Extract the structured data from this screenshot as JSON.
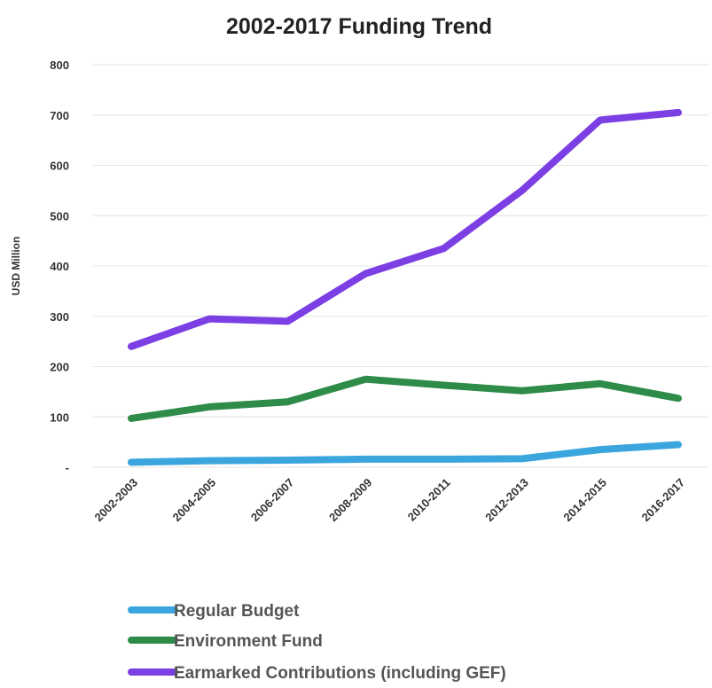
{
  "chart_data": {
    "type": "line",
    "title": "2002-2017 Funding Trend",
    "xlabel": "",
    "ylabel": "USD Million",
    "categories": [
      "2002-2003",
      "2004-2005",
      "2006-2007",
      "2008-2009",
      "2010-2011",
      "2012-2013",
      "2014-2015",
      "2016-2017"
    ],
    "ylim": [
      0,
      800
    ],
    "yticks": [
      0,
      100,
      200,
      300,
      400,
      500,
      600,
      700,
      800
    ],
    "ytick_labels": [
      "-",
      "100",
      "200",
      "300",
      "400",
      "500",
      "600",
      "700",
      "800"
    ],
    "grid": true,
    "legend_position": "bottom-left",
    "series": [
      {
        "name": "Regular Budget",
        "color": "#3aa6dd",
        "values": [
          10,
          13,
          14,
          16,
          16,
          17,
          35,
          45
        ]
      },
      {
        "name": "Environment Fund",
        "color": "#2e8b48",
        "values": [
          97,
          120,
          130,
          175,
          163,
          152,
          166,
          137
        ]
      },
      {
        "name": "Earmarked Contributions (including GEF)",
        "color": "#7b3fe4",
        "values": [
          240,
          295,
          290,
          385,
          435,
          550,
          690,
          705
        ]
      }
    ]
  }
}
